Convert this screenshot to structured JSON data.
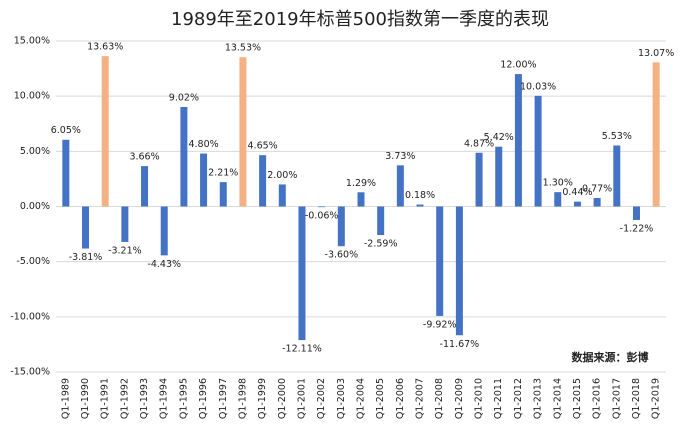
{
  "chart_data": {
    "type": "bar",
    "title": "1989年至2019年标普500指数第一季度的表现",
    "categories": [
      "Q1-1989",
      "Q1-1990",
      "Q1-1991",
      "Q1-1992",
      "Q1-1993",
      "Q1-1994",
      "Q1-1995",
      "Q1-1996",
      "Q1-1997",
      "Q1-1998",
      "Q1-1999",
      "Q1-2000",
      "Q1-2001",
      "Q1-2002",
      "Q1-2003",
      "Q1-2004",
      "Q1-2005",
      "Q1-2006",
      "Q1-2007",
      "Q1-2008",
      "Q1-2009",
      "Q1-2010",
      "Q1-2011",
      "Q1-2012",
      "Q1-2013",
      "Q1-2014",
      "Q1-2015",
      "Q1-2016",
      "Q1-2017",
      "Q1-2018",
      "Q1-2019"
    ],
    "values": [
      6.05,
      -3.81,
      13.63,
      -3.21,
      3.66,
      -4.43,
      9.02,
      4.8,
      2.21,
      13.53,
      4.65,
      2.0,
      -12.11,
      -0.06,
      -3.6,
      1.29,
      -2.59,
      3.73,
      0.18,
      -9.92,
      -11.67,
      4.87,
      5.42,
      12.0,
      10.03,
      1.3,
      0.44,
      0.77,
      5.53,
      -1.22,
      13.07
    ],
    "value_labels": [
      "6.05%",
      "-3.81%",
      "13.63%",
      "-3.21%",
      "3.66%",
      "-4.43%",
      "9.02%",
      "4.80%",
      "2.21%",
      "13.53%",
      "4.65%",
      "2.00%",
      "-12.11%",
      "-0.06%",
      "-3.60%",
      "1.29%",
      "-2.59%",
      "3.73%",
      "0.18%",
      "-9.92%",
      "-11.67%",
      "4.87%",
      "5.42%",
      "12.00%",
      "10.03%",
      "1.30%",
      "0.44%",
      "0.77%",
      "5.53%",
      "-1.22%",
      "13.07%"
    ],
    "colors": [
      "#4472c4",
      "#4472c4",
      "#f4b183",
      "#4472c4",
      "#4472c4",
      "#4472c4",
      "#4472c4",
      "#4472c4",
      "#4472c4",
      "#f4b183",
      "#4472c4",
      "#4472c4",
      "#4472c4",
      "#4472c4",
      "#4472c4",
      "#4472c4",
      "#4472c4",
      "#4472c4",
      "#4472c4",
      "#4472c4",
      "#4472c4",
      "#4472c4",
      "#4472c4",
      "#4472c4",
      "#4472c4",
      "#4472c4",
      "#4472c4",
      "#4472c4",
      "#4472c4",
      "#4472c4",
      "#f4b183"
    ],
    "ylim": [
      -15,
      15
    ],
    "yticks": [
      {
        "value": -15,
        "label": "-15.00%"
      },
      {
        "value": -10,
        "label": "-10.00%"
      },
      {
        "value": -5,
        "label": "-5.00%"
      },
      {
        "value": 0,
        "label": "0.00%"
      },
      {
        "value": 5,
        "label": "5.00%"
      },
      {
        "value": 10,
        "label": "10.00%"
      },
      {
        "value": 15,
        "label": "15.00%"
      }
    ],
    "grid": true,
    "source": "数据来源：彭博"
  }
}
